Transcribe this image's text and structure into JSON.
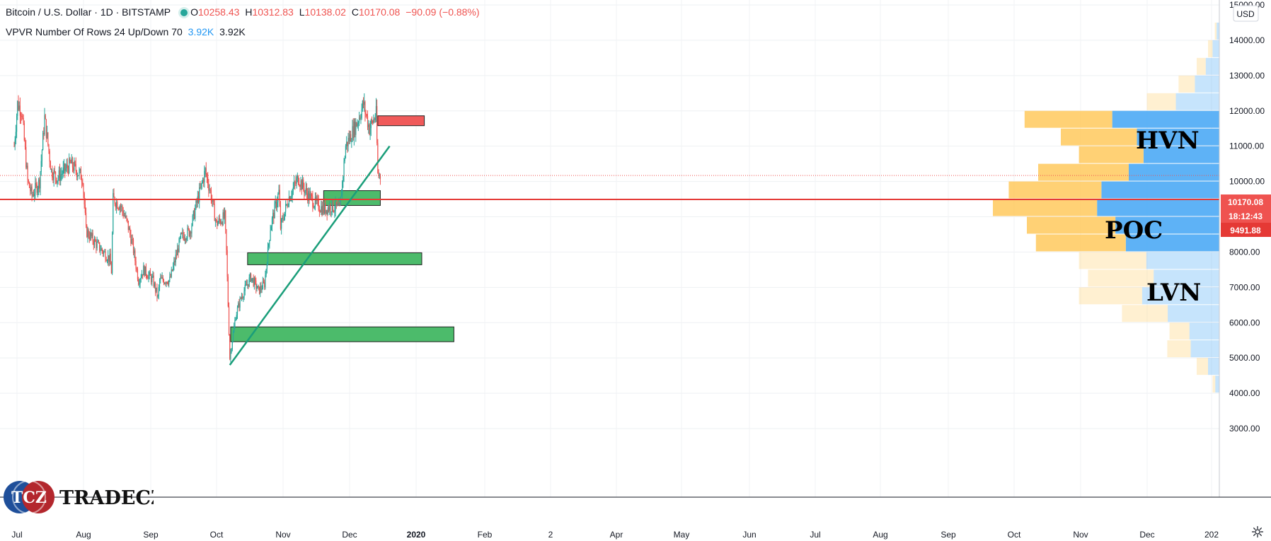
{
  "header": {
    "symbol": "Bitcoin / U.S. Dollar · 1D · BITSTAMP",
    "open_label": "O",
    "open": "10258.43",
    "high_label": "H",
    "high": "10312.83",
    "low_label": "L",
    "low": "10138.02",
    "close_label": "C",
    "close": "10170.08",
    "change": "−90.09 (−0.88%)",
    "indicator": "VPVR Number Of Rows 24 Up/Down 70",
    "ind_val1": "3.92K",
    "ind_val2": "3.92K"
  },
  "currency_button": "USD",
  "price_labels": {
    "last_price": "10170.08",
    "countdown": "18:12:43",
    "poc_price": "9491.88"
  },
  "annotations": {
    "hvn": "HVN",
    "poc": "POC",
    "lvn": "LVN"
  },
  "logo": {
    "text": "TRADECZ",
    "mark": "TCZ"
  },
  "colors": {
    "up": "#26a69a",
    "down": "#ef5350",
    "vp_up": "#42a5f5",
    "vp_down": "#ffcc66",
    "zone_green": "#4cbb6b",
    "zone_red": "#f05a5a",
    "poc_line": "#e53935",
    "trend": "#1a9e7a"
  },
  "chart_data": {
    "type": "candlestick",
    "title": "Bitcoin / U.S. Dollar · 1D · BITSTAMP",
    "x_ticks": [
      "Jul",
      "Aug",
      "Sep",
      "Oct",
      "Nov",
      "Dec",
      "2020",
      "Feb",
      "2",
      "Apr",
      "May",
      "Jun",
      "Jul",
      "Aug",
      "Sep",
      "Oct",
      "Nov",
      "Dec",
      "202"
    ],
    "y_ticks": [
      3000,
      4000,
      5000,
      6000,
      7000,
      8000,
      9000,
      10000,
      11000,
      12000,
      13000,
      14000,
      15000
    ],
    "ylim": [
      2900,
      15100
    ],
    "price_path": [
      [
        "2019-07-01",
        11000
      ],
      [
        "2019-07-05",
        12200
      ],
      [
        "2019-07-10",
        12000
      ],
      [
        "2019-07-17",
        10000
      ],
      [
        "2019-07-22",
        9600
      ],
      [
        "2019-07-31",
        10000
      ],
      [
        "2019-08-06",
        11800
      ],
      [
        "2019-08-14",
        10300
      ],
      [
        "2019-08-21",
        10100
      ],
      [
        "2019-09-06",
        10500
      ],
      [
        "2019-09-20",
        10100
      ],
      [
        "2019-09-24",
        8600
      ],
      [
        "2019-10-07",
        8200
      ],
      [
        "2019-10-22",
        7800
      ],
      [
        "2019-10-24",
        7450
      ],
      [
        "2019-10-26",
        9500
      ],
      [
        "2019-11-04",
        9300
      ],
      [
        "2019-11-12",
        8800
      ],
      [
        "2019-11-18",
        8200
      ],
      [
        "2019-11-25",
        7200
      ],
      [
        "2019-12-01",
        7500
      ],
      [
        "2019-12-12",
        7200
      ],
      [
        "2019-12-18",
        6700
      ],
      [
        "2019-12-20",
        7200
      ],
      [
        "2020-01-01",
        7200
      ],
      [
        "2020-01-14",
        8400
      ],
      [
        "2020-01-25",
        8600
      ],
      [
        "2020-02-01",
        9300
      ],
      [
        "2020-02-12",
        10300
      ],
      [
        "2020-02-18",
        9700
      ],
      [
        "2020-02-25",
        8800
      ],
      [
        "2020-03-06",
        9000
      ],
      [
        "2020-03-08",
        8000
      ],
      [
        "2020-03-12",
        5000
      ],
      [
        "2020-03-19",
        6200
      ],
      [
        "2020-03-25",
        6700
      ],
      [
        "2020-04-06",
        7300
      ],
      [
        "2020-04-15",
        6900
      ],
      [
        "2020-04-22",
        7100
      ],
      [
        "2020-04-29",
        8700
      ],
      [
        "2020-05-09",
        9700
      ],
      [
        "2020-05-11",
        8700
      ],
      [
        "2020-05-20",
        9500
      ],
      [
        "2020-06-01",
        10100
      ],
      [
        "2020-06-10",
        9700
      ],
      [
        "2020-06-20",
        9400
      ],
      [
        "2020-07-01",
        9200
      ],
      [
        "2020-07-10",
        9300
      ],
      [
        "2020-07-20",
        9200
      ],
      [
        "2020-07-27",
        11000
      ],
      [
        "2020-08-02",
        11300
      ],
      [
        "2020-08-10",
        11700
      ],
      [
        "2020-08-17",
        12200
      ],
      [
        "2020-08-24",
        11500
      ],
      [
        "2020-09-01",
        11900
      ],
      [
        "2020-09-03",
        10200
      ],
      [
        "2020-09-06",
        10170
      ]
    ],
    "last": {
      "open": 10258.43,
      "high": 10312.83,
      "low": 10138.02,
      "close": 10170.08,
      "change": -90.09,
      "change_pct": -0.88
    },
    "volume_profile": {
      "rows": 24,
      "rows_data": [
        {
          "price": 14250,
          "total": 0.02,
          "up": 0.6
        },
        {
          "price": 13750,
          "total": 0.05,
          "up": 0.6
        },
        {
          "price": 13250,
          "total": 0.1,
          "up": 0.6
        },
        {
          "price": 12750,
          "total": 0.18,
          "up": 0.6
        },
        {
          "price": 12250,
          "total": 0.32,
          "up": 0.6
        },
        {
          "price": 11750,
          "total": 0.86,
          "up": 0.55
        },
        {
          "price": 11250,
          "total": 0.7,
          "up": 0.52
        },
        {
          "price": 10750,
          "total": 0.62,
          "up": 0.54
        },
        {
          "price": 10250,
          "total": 0.8,
          "up": 0.5
        },
        {
          "price": 9750,
          "total": 0.93,
          "up": 0.56
        },
        {
          "price": 9250,
          "total": 1.0,
          "up": 0.54
        },
        {
          "price": 8750,
          "total": 0.85,
          "up": 0.54
        },
        {
          "price": 8250,
          "total": 0.81,
          "up": 0.51
        },
        {
          "price": 7750,
          "total": 0.62,
          "up": 0.52
        },
        {
          "price": 7250,
          "total": 0.58,
          "up": 0.5
        },
        {
          "price": 6750,
          "total": 0.62,
          "up": 0.55
        },
        {
          "price": 6250,
          "total": 0.43,
          "up": 0.53
        },
        {
          "price": 5750,
          "total": 0.22,
          "up": 0.6
        },
        {
          "price": 5250,
          "total": 0.23,
          "up": 0.55
        },
        {
          "price": 4750,
          "total": 0.1,
          "up": 0.5
        },
        {
          "price": 4250,
          "total": 0.03,
          "up": 0.6
        }
      ]
    },
    "poc_price": 9491.88,
    "zones": [
      {
        "type": "resistance",
        "from": "2020-09-03",
        "to": "2020-10-28",
        "low": 11580,
        "high": 11860
      },
      {
        "type": "support",
        "from": "2020-07-01",
        "to": "2020-09-06",
        "low": 9320,
        "high": 9740
      },
      {
        "type": "support",
        "from": "2020-04-02",
        "to": "2020-10-25",
        "low": 7640,
        "high": 7980
      },
      {
        "type": "support",
        "from": "2020-03-13",
        "to": "2020-12-02",
        "low": 5460,
        "high": 5880
      }
    ],
    "trendline": [
      [
        "2020-03-12",
        4800
      ],
      [
        "2020-09-17",
        11000
      ]
    ],
    "last_price": 10170.08
  }
}
